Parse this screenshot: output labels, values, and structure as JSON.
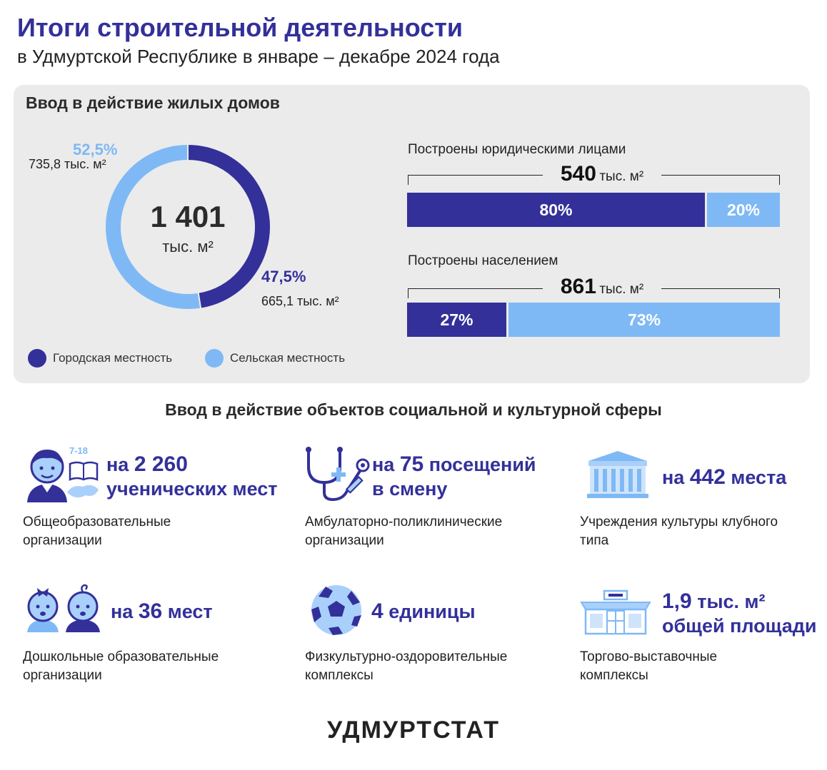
{
  "header": {
    "title": "Итоги строительной деятельности",
    "subtitle": "в Удмуртской Республике в январе – декабре 2024 года"
  },
  "housing": {
    "title": "Ввод в действие жилых домов",
    "total_value": "1 401",
    "total_unit": "тыс. м²",
    "urban": {
      "pct": "47,5%",
      "value": "665,1 тыс. м²",
      "color": "#33309a"
    },
    "rural": {
      "pct": "52,5%",
      "value": "735,8 тыс. м²",
      "color": "#7eb9f5"
    },
    "legend": {
      "urban": "Городская местность",
      "rural": "Сельская местность"
    },
    "legal": {
      "title": "Построены юридическими лицами",
      "total": "540",
      "unit": "тыс. м²",
      "urban_pct": "80%",
      "rural_pct": "20%"
    },
    "population": {
      "title": "Построены населением",
      "total": "861",
      "unit": "тыс. м²",
      "urban_pct": "27%",
      "rural_pct": "73%"
    }
  },
  "chart_data": [
    {
      "type": "pie",
      "categories": [
        "Городская местность",
        "Сельская местность"
      ],
      "values": [
        47.5,
        52.5
      ],
      "absolute_values": [
        665.1,
        735.8
      ],
      "unit": "тыс. м²",
      "total": 1401,
      "colors": [
        "#33309a",
        "#7eb9f5"
      ]
    },
    {
      "type": "bar",
      "categories": [
        "Городская местность",
        "Сельская местность"
      ],
      "values": [
        80,
        20
      ],
      "total": 540,
      "unit": "тыс. м²",
      "title": "Построены юридическими лицами"
    },
    {
      "type": "bar",
      "categories": [
        "Городская местность",
        "Сельская местность"
      ],
      "values": [
        27,
        73
      ],
      "total": 861,
      "unit": "тыс. м²",
      "title": "Построены населением"
    }
  ],
  "social": {
    "title": "Ввод в действие объектов социальной и культурной сферы",
    "items": [
      {
        "icon": "schoolchild-icon",
        "age_label": "7-18",
        "prefix": "на",
        "value": "2 260",
        "line2": "ученических мест",
        "caption1": "Общеобразовательные",
        "caption2": "организации"
      },
      {
        "icon": "stethoscope-icon",
        "prefix": "на",
        "value": "75",
        "suffix": "посещений",
        "line2": "в смену",
        "caption1": "Амбулаторно-поликлинические",
        "caption2": "организации"
      },
      {
        "icon": "culture-building-icon",
        "prefix": "на",
        "value": "442",
        "suffix": "места",
        "caption1": "Учреждения культуры клубного",
        "caption2": "типа"
      },
      {
        "icon": "toddlers-icon",
        "prefix": "на",
        "value": "36",
        "suffix": "мест",
        "caption1": "Дошкольные образовательные",
        "caption2": "организации"
      },
      {
        "icon": "football-icon",
        "value": "4",
        "suffix": "единицы",
        "caption1": "Физкультурно-оздоровительные",
        "caption2": "комплексы"
      },
      {
        "icon": "shopping-center-icon",
        "value": "1,9",
        "suffix": "тыс. м²",
        "line2": "общей площади",
        "caption1": "Торгово-выставочные",
        "caption2": "комплексы"
      }
    ]
  },
  "footer": {
    "brand": "УДМУРТСТАТ"
  }
}
